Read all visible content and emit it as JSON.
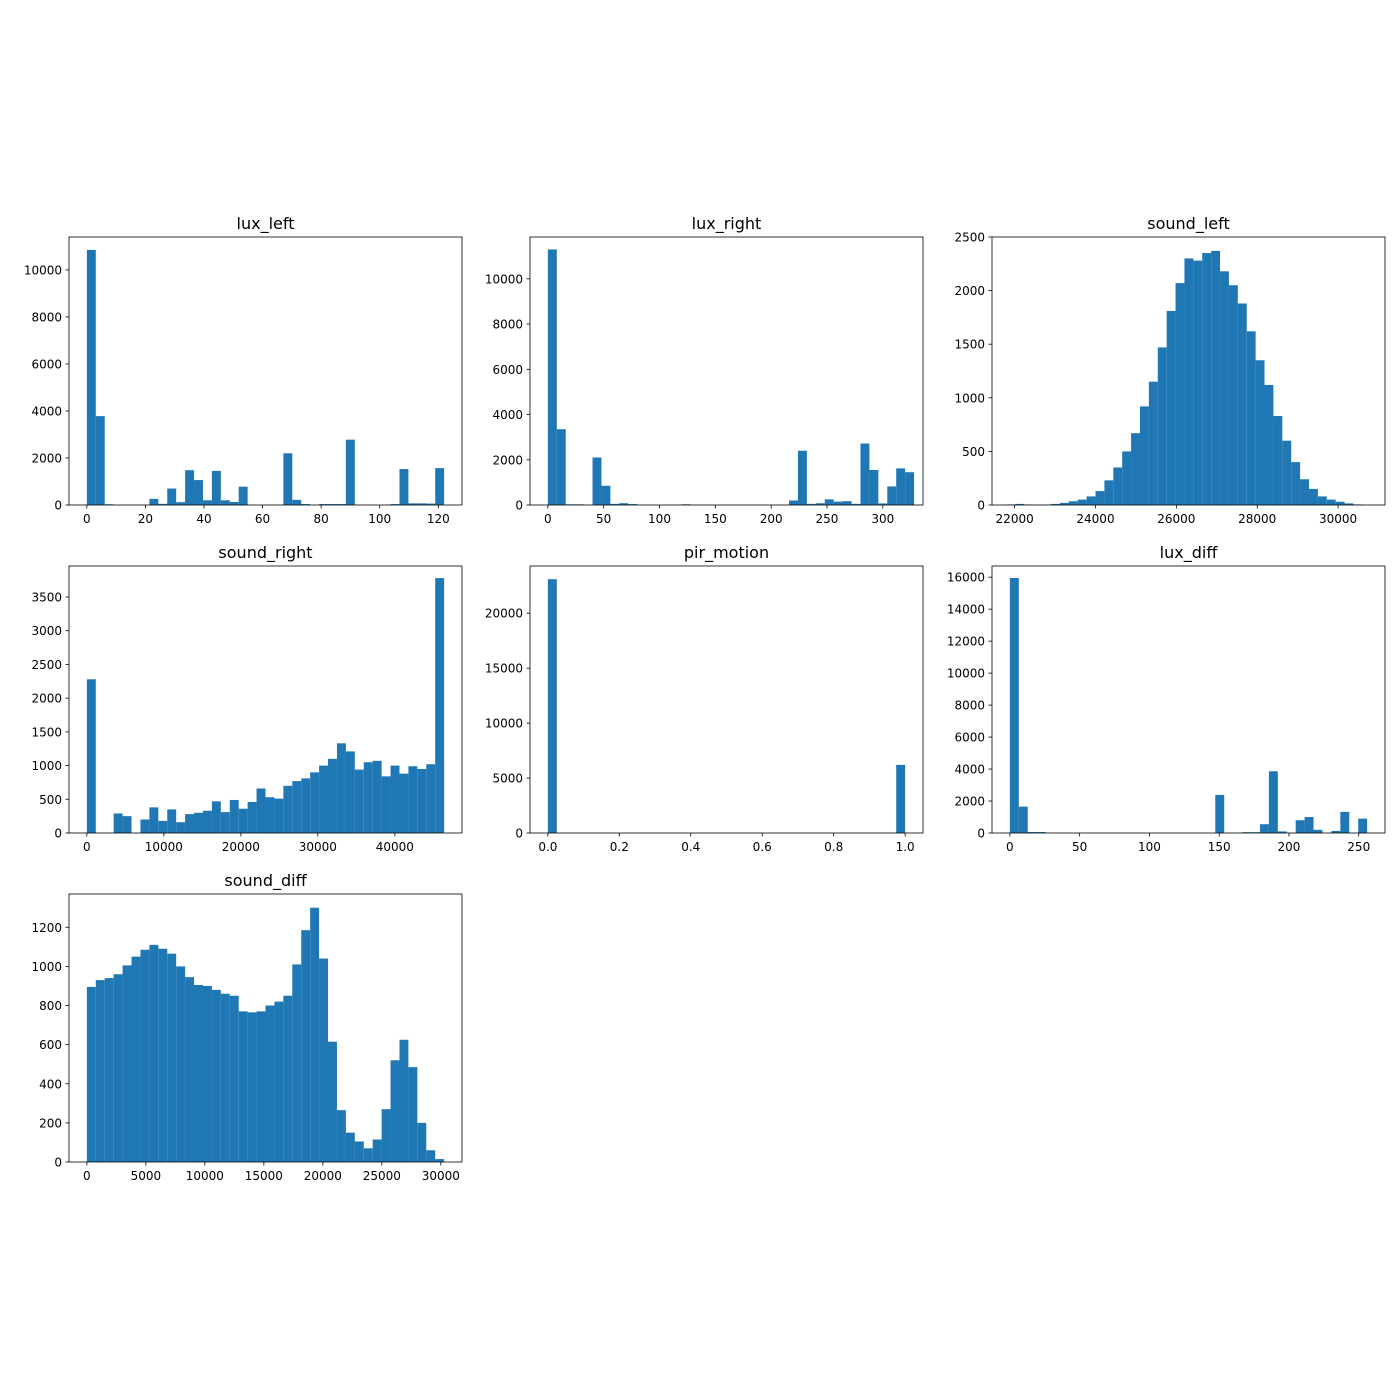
{
  "chart_data": [
    {
      "type": "bar",
      "title": "lux_left",
      "xlabel": "",
      "ylabel": "",
      "bin_edges_start": 0,
      "bin_width": 3.05,
      "values": [
        10850,
        3780,
        30,
        0,
        0,
        0,
        0,
        260,
        50,
        700,
        120,
        1480,
        1060,
        200,
        1450,
        200,
        130,
        780,
        0,
        0,
        0,
        0,
        2200,
        220,
        40,
        0,
        40,
        40,
        40,
        2780,
        0,
        0,
        0,
        0,
        40,
        1530,
        70,
        70,
        60,
        1570
      ],
      "xlim": [
        -6.1,
        128.1
      ],
      "ylim": [
        0,
        11400
      ],
      "xticks": [
        0,
        20,
        40,
        60,
        80,
        100,
        120
      ],
      "yticks": [
        0,
        2000,
        4000,
        6000,
        8000,
        10000
      ],
      "color": "#1f77b4"
    },
    {
      "type": "bar",
      "title": "lux_right",
      "xlabel": "",
      "ylabel": "",
      "bin_edges_start": 0,
      "bin_width": 8.0,
      "values": [
        11300,
        3350,
        30,
        30,
        0,
        2100,
        850,
        50,
        80,
        40,
        0,
        0,
        0,
        0,
        0,
        30,
        0,
        0,
        0,
        0,
        0,
        0,
        0,
        0,
        0,
        0,
        0,
        200,
        2400,
        50,
        80,
        250,
        150,
        170,
        50,
        2720,
        1550,
        70,
        820,
        1620,
        1450
      ],
      "xlim": [
        -16,
        336
      ],
      "ylim": [
        0,
        11850
      ],
      "xticks": [
        0,
        50,
        100,
        150,
        200,
        250,
        300
      ],
      "yticks": [
        0,
        2000,
        4000,
        6000,
        8000,
        10000
      ],
      "color": "#1f77b4"
    },
    {
      "type": "bar",
      "title": "sound_left",
      "xlabel": "",
      "ylabel": "",
      "bin_edges_start": 21800,
      "bin_width": 220,
      "values": [
        5,
        10,
        3,
        2,
        3,
        10,
        20,
        35,
        50,
        80,
        130,
        230,
        350,
        500,
        670,
        920,
        1150,
        1470,
        1810,
        2070,
        2300,
        2280,
        2350,
        2370,
        2180,
        2050,
        1880,
        1620,
        1350,
        1120,
        830,
        600,
        400,
        240,
        150,
        80,
        50,
        30,
        15,
        5
      ],
      "xlim": [
        21440,
        31160
      ],
      "ylim": [
        0,
        2500
      ],
      "xticks": [
        22000,
        24000,
        26000,
        28000,
        30000
      ],
      "yticks": [
        0,
        500,
        1000,
        1500,
        2000,
        2500
      ],
      "color": "#1f77b4"
    },
    {
      "type": "bar",
      "title": "sound_right",
      "xlabel": "",
      "ylabel": "",
      "bin_edges_start": 0,
      "bin_width": 1160,
      "values": [
        2280,
        0,
        0,
        290,
        250,
        0,
        200,
        380,
        180,
        350,
        160,
        280,
        300,
        330,
        470,
        310,
        490,
        360,
        460,
        660,
        530,
        510,
        700,
        770,
        810,
        900,
        1000,
        1100,
        1330,
        1210,
        940,
        1050,
        1070,
        840,
        1000,
        880,
        990,
        950,
        1020,
        3780
      ],
      "xlim": [
        -2320,
        48720
      ],
      "ylim": [
        0,
        3960
      ],
      "xticks": [
        0,
        10000,
        20000,
        30000,
        40000
      ],
      "yticks": [
        0,
        500,
        1000,
        1500,
        2000,
        2500,
        3000,
        3500
      ],
      "color": "#1f77b4"
    },
    {
      "type": "bar",
      "title": "pir_motion",
      "xlabel": "",
      "ylabel": "",
      "bin_edges_start": 0,
      "bin_width": 0.025,
      "values": [
        23100,
        0,
        0,
        0,
        0,
        0,
        0,
        0,
        0,
        0,
        0,
        0,
        0,
        0,
        0,
        0,
        0,
        0,
        0,
        0,
        0,
        0,
        0,
        0,
        0,
        0,
        0,
        0,
        0,
        0,
        0,
        0,
        0,
        0,
        0,
        0,
        0,
        0,
        0,
        6200
      ],
      "xlim": [
        -0.05,
        1.05
      ],
      "ylim": [
        0,
        24300
      ],
      "xticks": [
        0.0,
        0.2,
        0.4,
        0.6,
        0.8,
        1.0
      ],
      "xtick_labels": [
        "0.0",
        "0.2",
        "0.4",
        "0.6",
        "0.8",
        "1.0"
      ],
      "yticks": [
        0,
        5000,
        10000,
        15000,
        20000
      ],
      "color": "#1f77b4"
    },
    {
      "type": "bar",
      "title": "lux_diff",
      "xlabel": "",
      "ylabel": "",
      "bin_edges_start": 0,
      "bin_width": 6.4,
      "values": [
        15950,
        1650,
        60,
        60,
        0,
        0,
        0,
        0,
        0,
        0,
        0,
        0,
        0,
        0,
        0,
        0,
        0,
        0,
        0,
        0,
        0,
        0,
        0,
        2380,
        0,
        0,
        50,
        50,
        550,
        3860,
        100,
        0,
        800,
        1000,
        200,
        0,
        130,
        1320,
        0,
        900
      ],
      "xlim": [
        -12.8,
        268.8
      ],
      "ylim": [
        0,
        16700
      ],
      "xticks": [
        0,
        50,
        100,
        150,
        200,
        250
      ],
      "yticks": [
        0,
        2000,
        4000,
        6000,
        8000,
        10000,
        12000,
        14000,
        16000
      ],
      "color": "#1f77b4"
    },
    {
      "type": "bar",
      "title": "sound_diff",
      "xlabel": "",
      "ylabel": "",
      "bin_edges_start": 0,
      "bin_width": 757,
      "values": [
        895,
        930,
        940,
        960,
        1005,
        1050,
        1085,
        1110,
        1090,
        1065,
        1000,
        945,
        905,
        900,
        880,
        860,
        850,
        770,
        765,
        770,
        800,
        820,
        850,
        1010,
        1185,
        1300,
        1040,
        615,
        265,
        150,
        105,
        70,
        115,
        270,
        520,
        625,
        485,
        200,
        60,
        15
      ],
      "xlim": [
        -1514,
        31794
      ],
      "ylim": [
        0,
        1370
      ],
      "xticks": [
        0,
        5000,
        10000,
        15000,
        20000,
        25000,
        30000
      ],
      "yticks": [
        0,
        200,
        400,
        600,
        800,
        1000,
        1200
      ],
      "color": "#1f77b4"
    }
  ]
}
